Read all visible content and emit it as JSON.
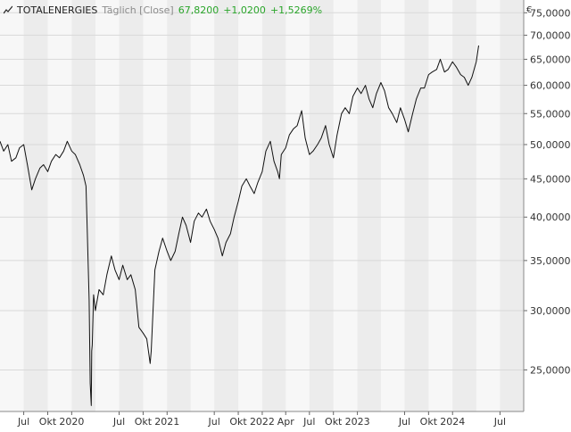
{
  "header": {
    "symbol": "TOTALENERGIES",
    "interval": "Täglich [Close]",
    "last": "67,8200",
    "change": "+1,0200",
    "change_pct": "+1,5269%",
    "currency": "€"
  },
  "colors": {
    "line": "#111111",
    "positive": "#2aa52a",
    "grid": "#d9d9d9",
    "band_light": "#f7f7f7",
    "band_dark": "#ececec"
  },
  "chart_data": {
    "type": "line",
    "title": "TOTALENERGIES",
    "xlabel": "",
    "ylabel": "€",
    "y_scale": "log",
    "ylim": [
      22,
      78
    ],
    "xlim": [
      "2019-04-01",
      "2024-09-30"
    ],
    "grid": true,
    "y_ticks": [
      25,
      30,
      35,
      40,
      45,
      50,
      55,
      60,
      65,
      70,
      75
    ],
    "y_tick_labels": [
      "25,0000",
      "30,0000",
      "35,0000",
      "40,0000",
      "45,0000",
      "50,0000",
      "55,0000",
      "60,0000",
      "65,0000",
      "70,0000",
      "75,0000"
    ],
    "x_ticks": [
      {
        "date": "2019-07-01",
        "label": "Jul"
      },
      {
        "date": "2019-10-01",
        "label": "Okt"
      },
      {
        "date": "2020-01-01",
        "label": "2020"
      },
      {
        "date": "2020-07-01",
        "label": "Jul"
      },
      {
        "date": "2020-10-01",
        "label": "Okt"
      },
      {
        "date": "2021-01-01",
        "label": "2021"
      },
      {
        "date": "2021-07-01",
        "label": "Jul"
      },
      {
        "date": "2021-10-01",
        "label": "Okt"
      },
      {
        "date": "2022-01-01",
        "label": "2022"
      },
      {
        "date": "2022-04-01",
        "label": "Apr"
      },
      {
        "date": "2022-07-01",
        "label": "Jul"
      },
      {
        "date": "2022-10-01",
        "label": "Okt"
      },
      {
        "date": "2023-01-01",
        "label": "2023"
      },
      {
        "date": "2023-07-01",
        "label": "Jul"
      },
      {
        "date": "2023-10-01",
        "label": "Okt"
      },
      {
        "date": "2024-01-01",
        "label": "2024"
      },
      {
        "date": "2024-07-01",
        "label": "Jul"
      }
    ],
    "series": [
      {
        "name": "TOTALENERGIES",
        "x": [
          "2019-04-01",
          "2019-04-15",
          "2019-05-01",
          "2019-05-15",
          "2019-06-01",
          "2019-06-15",
          "2019-07-01",
          "2019-07-15",
          "2019-08-01",
          "2019-08-15",
          "2019-09-01",
          "2019-09-15",
          "2019-10-01",
          "2019-10-15",
          "2019-11-01",
          "2019-11-15",
          "2019-12-01",
          "2019-12-15",
          "2020-01-01",
          "2020-01-15",
          "2020-02-01",
          "2020-02-15",
          "2020-02-25",
          "2020-03-01",
          "2020-03-08",
          "2020-03-12",
          "2020-03-16",
          "2020-03-18",
          "2020-03-20",
          "2020-03-25",
          "2020-04-01",
          "2020-04-15",
          "2020-05-01",
          "2020-05-15",
          "2020-06-01",
          "2020-06-15",
          "2020-07-01",
          "2020-07-15",
          "2020-08-01",
          "2020-08-15",
          "2020-09-01",
          "2020-09-15",
          "2020-10-01",
          "2020-10-15",
          "2020-10-28",
          "2020-11-01",
          "2020-11-09",
          "2020-11-15",
          "2020-12-01",
          "2020-12-15",
          "2021-01-01",
          "2021-01-15",
          "2021-02-01",
          "2021-02-15",
          "2021-03-01",
          "2021-03-15",
          "2021-04-01",
          "2021-04-15",
          "2021-05-01",
          "2021-05-15",
          "2021-06-01",
          "2021-06-15",
          "2021-07-01",
          "2021-07-15",
          "2021-08-01",
          "2021-08-15",
          "2021-09-01",
          "2021-09-15",
          "2021-10-01",
          "2021-10-15",
          "2021-11-01",
          "2021-11-15",
          "2021-12-01",
          "2021-12-15",
          "2022-01-01",
          "2022-01-15",
          "2022-02-01",
          "2022-02-15",
          "2022-03-01",
          "2022-03-08",
          "2022-03-15",
          "2022-04-01",
          "2022-04-15",
          "2022-05-01",
          "2022-05-15",
          "2022-06-01",
          "2022-06-15",
          "2022-07-01",
          "2022-07-15",
          "2022-08-01",
          "2022-08-15",
          "2022-09-01",
          "2022-09-15",
          "2022-10-01",
          "2022-10-15",
          "2022-11-01",
          "2022-11-15",
          "2022-12-01",
          "2022-12-15",
          "2023-01-01",
          "2023-01-15",
          "2023-02-01",
          "2023-02-15",
          "2023-03-01",
          "2023-03-15",
          "2023-04-01",
          "2023-04-15",
          "2023-05-01",
          "2023-05-15",
          "2023-06-01",
          "2023-06-15",
          "2023-07-01",
          "2023-07-15",
          "2023-08-01",
          "2023-08-15",
          "2023-09-01",
          "2023-09-15",
          "2023-10-01",
          "2023-10-15",
          "2023-11-01",
          "2023-11-15",
          "2023-12-01",
          "2023-12-15",
          "2024-01-01",
          "2024-01-15",
          "2024-02-01",
          "2024-02-15",
          "2024-03-01",
          "2024-03-15",
          "2024-04-01",
          "2024-04-10"
        ],
        "values": [
          50.5,
          49.0,
          50.0,
          47.5,
          48.0,
          49.5,
          50.0,
          47.0,
          43.5,
          45.0,
          46.5,
          47.0,
          46.0,
          47.5,
          48.5,
          48.0,
          49.0,
          50.5,
          49.0,
          48.5,
          47.0,
          45.5,
          44.0,
          38.0,
          31.0,
          24.0,
          22.4,
          26.5,
          27.0,
          31.5,
          30.0,
          32.0,
          31.5,
          33.5,
          35.5,
          34.0,
          33.0,
          34.5,
          33.0,
          33.5,
          32.0,
          28.5,
          28.0,
          27.5,
          25.5,
          26.5,
          30.5,
          34.0,
          36.0,
          37.5,
          36.0,
          35.0,
          36.0,
          38.0,
          40.0,
          39.0,
          37.0,
          39.5,
          40.5,
          40.0,
          41.0,
          39.5,
          38.5,
          37.5,
          35.5,
          37.0,
          38.0,
          40.0,
          42.0,
          44.0,
          45.0,
          44.0,
          43.0,
          44.5,
          46.0,
          49.0,
          50.5,
          47.5,
          46.0,
          45.0,
          48.5,
          49.5,
          51.5,
          52.5,
          53.0,
          55.5,
          51.0,
          48.5,
          49.0,
          50.0,
          51.0,
          53.0,
          50.0,
          48.0,
          51.5,
          55.0,
          56.0,
          55.0,
          58.0,
          59.5,
          58.5,
          60.0,
          57.5,
          56.0,
          58.5,
          60.5,
          59.0,
          56.0,
          55.0,
          53.5,
          56.0,
          54.0,
          52.0,
          55.0,
          57.5,
          59.5,
          59.5,
          62.0,
          62.5,
          63.0,
          65.0,
          62.5,
          63.0,
          64.5,
          63.5,
          62.0,
          61.5,
          60.0,
          61.5,
          64.5,
          67.8
        ]
      }
    ]
  }
}
